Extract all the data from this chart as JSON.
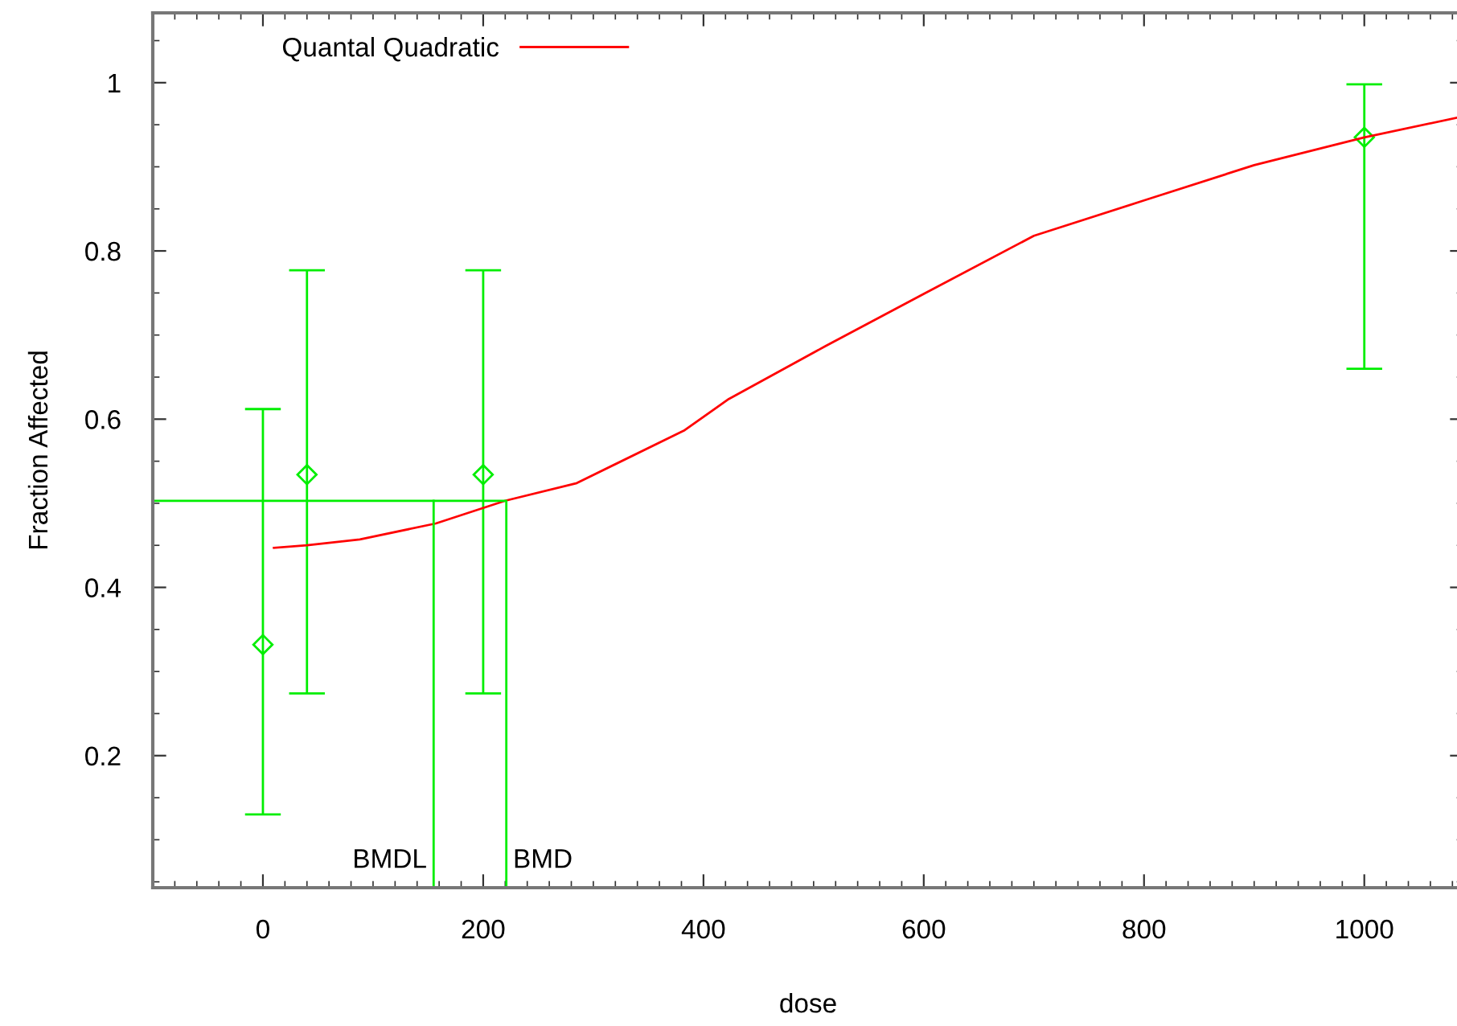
{
  "chart_data": {
    "type": "scatter",
    "xlabel": "dose",
    "ylabel": "Fraction Affected",
    "xlim": [
      -100,
      1090
    ],
    "ylim": [
      0.043,
      1.083
    ],
    "xticks": [
      0,
      200,
      400,
      600,
      800,
      1000
    ],
    "yticks": [
      0.2,
      0.4,
      0.6,
      0.8,
      1
    ],
    "series": [
      {
        "marker": "diamond",
        "color": "#00ee00",
        "x": [
          0,
          40,
          200,
          1000
        ],
        "values": [
          0.332,
          0.534,
          0.534,
          0.935
        ],
        "errors": [
          [
            0.13,
            0.612
          ],
          [
            0.274,
            0.777
          ],
          [
            0.274,
            0.777
          ],
          [
            0.66,
            0.998
          ]
        ]
      },
      {
        "type": "line",
        "name": "Quantal Quadratic",
        "color": "#ff0000",
        "x": [
          10,
          40,
          88,
          157,
          220,
          285,
          383,
          423,
          511,
          600,
          700,
          800,
          900,
          1000,
          1090
        ],
        "values": [
          0.447,
          0.45,
          0.457,
          0.476,
          0.503,
          0.524,
          0.587,
          0.624,
          0.687,
          0.749,
          0.818,
          0.86,
          0.902,
          0.935,
          0.96
        ]
      },
      {
        "type": "line",
        "color": "#00ee00",
        "x": [
          -100,
          221,
          221
        ],
        "values": [
          0.503,
          0.503,
          0.043
        ]
      },
      {
        "type": "line",
        "color": "#00ee00",
        "x": [
          155,
          155
        ],
        "values": [
          0.503,
          0.043
        ]
      }
    ],
    "annotations": [
      {
        "text": "BMDL",
        "x": 155,
        "y": 0.06
      },
      {
        "text": "BMD",
        "x": 221,
        "y": 0.06
      }
    ],
    "line_style": "solid",
    "grid": false,
    "legend": "top left"
  }
}
